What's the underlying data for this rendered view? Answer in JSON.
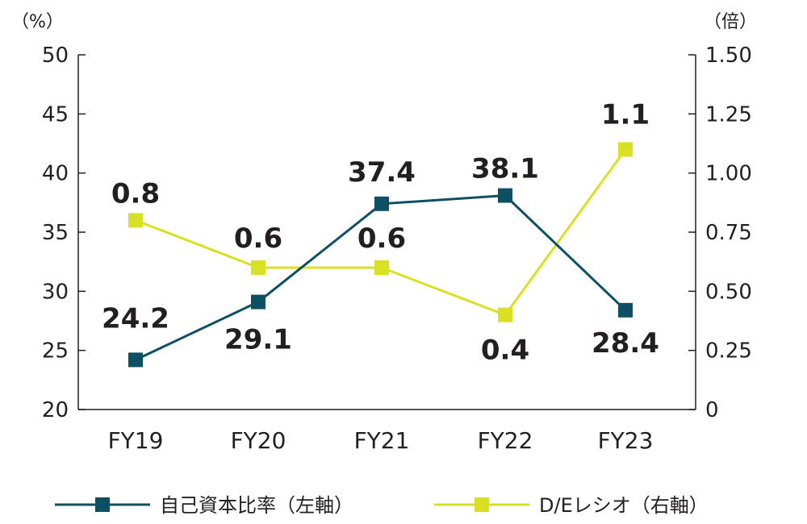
{
  "chart_data": {
    "type": "line",
    "categories": [
      "FY19",
      "FY20",
      "FY21",
      "FY22",
      "FY23"
    ],
    "y_left": {
      "unit_label": "（%）",
      "ylim": [
        20,
        50
      ],
      "ticks": [
        "20",
        "25",
        "30",
        "35",
        "40",
        "45",
        "50"
      ]
    },
    "y_right": {
      "unit_label": "（倍）",
      "ylim": [
        0,
        1.5
      ],
      "ticks": [
        "0",
        "0.25",
        "0.50",
        "0.75",
        "1.00",
        "1.25",
        "1.50"
      ]
    },
    "series": [
      {
        "name": "自己資本比率（左軸）",
        "axis": "left",
        "color": "#0d4f63",
        "values": [
          24.2,
          29.1,
          37.4,
          38.1,
          28.4
        ],
        "labels": [
          "24.2",
          "29.1",
          "37.4",
          "38.1",
          "28.4"
        ]
      },
      {
        "name": "D/Eレシオ（右軸）",
        "axis": "right",
        "color": "#d9e021",
        "values": [
          0.8,
          0.6,
          0.6,
          0.4,
          1.1
        ],
        "labels": [
          "0.8",
          "0.6",
          "0.6",
          "0.4",
          "1.1"
        ]
      }
    ],
    "grid": false,
    "legend_position": "bottom"
  }
}
